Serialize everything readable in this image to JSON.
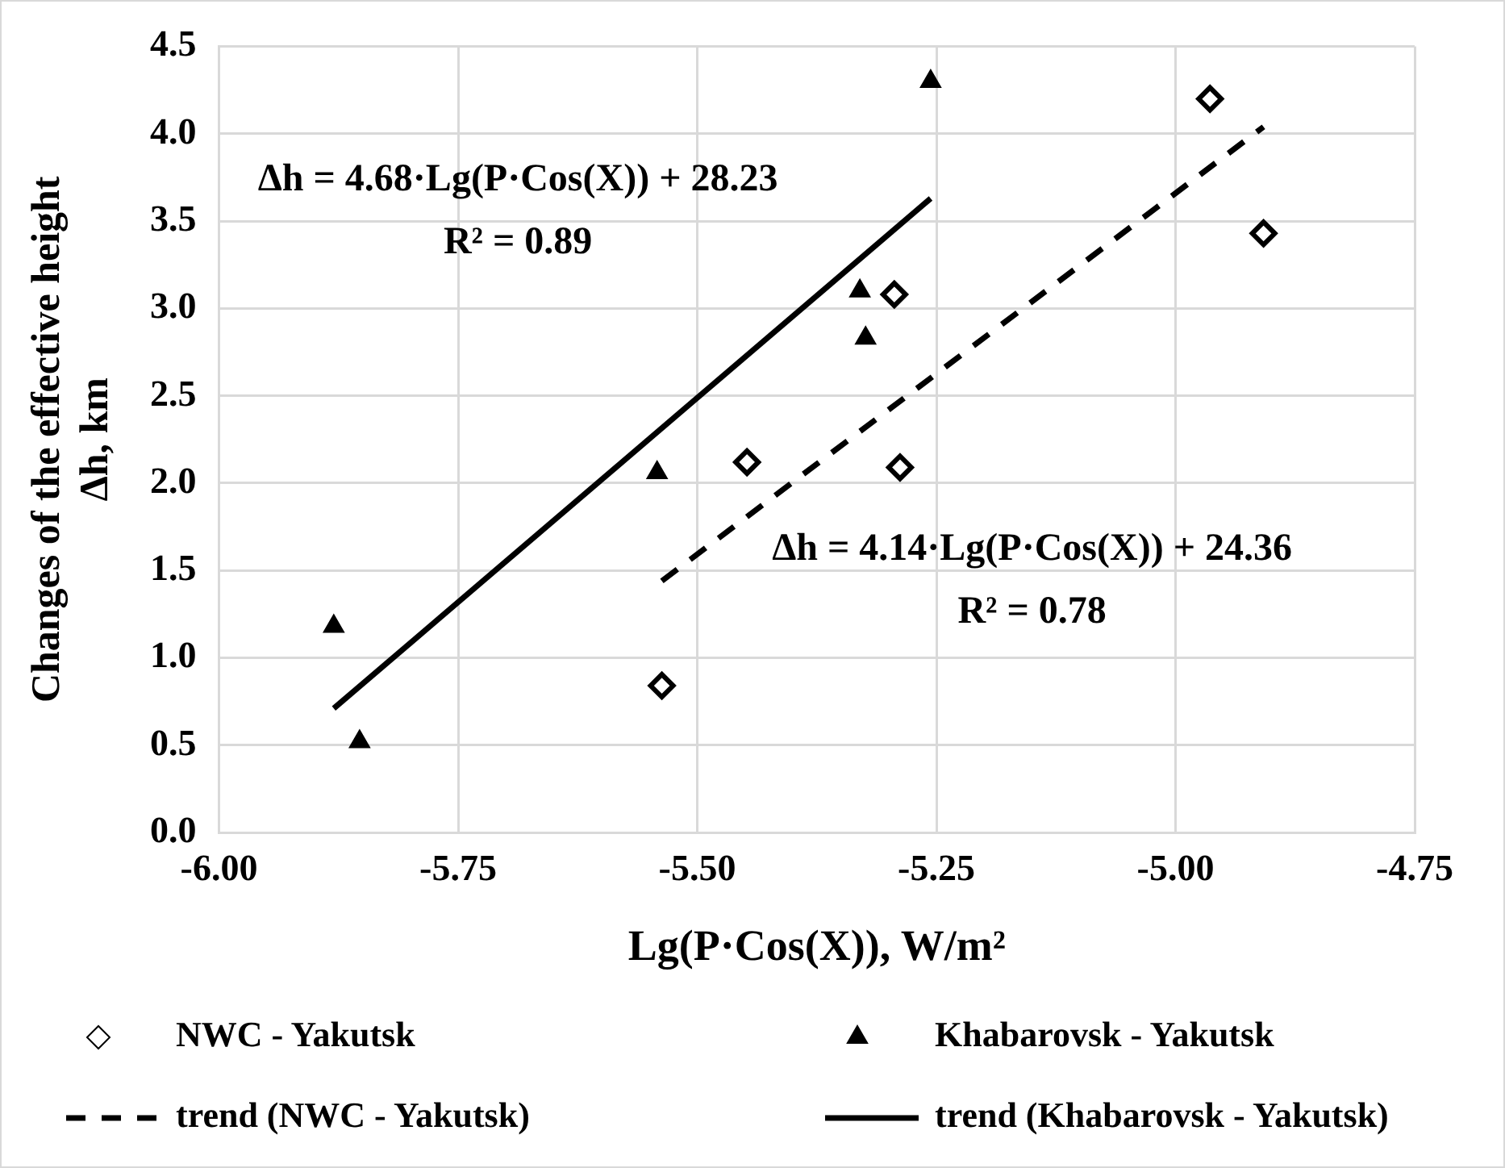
{
  "chart_data": {
    "type": "scatter",
    "xlabel": "Lg(P·Cos(X)), W/m²",
    "ylabel": "Changes of the effective height Δh, km",
    "xlim": [
      -6,
      -4.75
    ],
    "xticks": [
      {
        "value": -6,
        "label": "-6.00"
      },
      {
        "value": -5.75,
        "label": "-5.75"
      },
      {
        "value": -5.5,
        "label": "-5.50"
      },
      {
        "value": -5.25,
        "label": "-5.25"
      },
      {
        "value": -5,
        "label": "-5.00"
      },
      {
        "value": -4.75,
        "label": "-4.75"
      }
    ],
    "ylim": [
      0,
      4.5
    ],
    "yticks": [
      {
        "value": 0,
        "label": "0.0"
      },
      {
        "value": 0.5,
        "label": "0.5"
      },
      {
        "value": 1,
        "label": "1.0"
      },
      {
        "value": 1.5,
        "label": "1.5"
      },
      {
        "value": 2,
        "label": "2.0"
      },
      {
        "value": 2.5,
        "label": "2.5"
      },
      {
        "value": 3,
        "label": "3.0"
      },
      {
        "value": 3.5,
        "label": "3.5"
      },
      {
        "value": 4,
        "label": "4.0"
      },
      {
        "value": 4.5,
        "label": "4.5"
      }
    ],
    "grid": true,
    "legend": "bottom",
    "series": [
      {
        "name": "NWC - Yakutsk",
        "type": "scatter",
        "marker": "diamond",
        "color": "#000000",
        "x": [
          -5.537,
          -5.448,
          -5.288,
          -5.294,
          -4.964,
          -4.908
        ],
        "values": [
          0.84,
          2.12,
          2.09,
          3.08,
          4.2,
          3.43
        ]
      },
      {
        "name": "Khabarovsk - Yakutsk",
        "type": "scatter",
        "marker": "triangle",
        "color": "#000000",
        "x": [
          -5.88,
          -5.853,
          -5.542,
          -5.33,
          -5.324,
          -5.256
        ],
        "values": [
          1.18,
          0.52,
          2.06,
          3.1,
          2.83,
          4.3
        ]
      },
      {
        "name": "trend (NWC - Yakutsk)",
        "type": "line",
        "marker": "none",
        "line_style": "dashed",
        "color": "#000000",
        "x": [
          -5.537,
          -4.908
        ],
        "values": [
          1.44,
          4.04
        ]
      },
      {
        "name": "trend (Khabarovsk - Yakutsk)",
        "type": "line",
        "marker": "none",
        "line_style": "solid",
        "color": "#000000",
        "x": [
          -5.88,
          -5.256
        ],
        "values": [
          0.71,
          3.63
        ]
      }
    ],
    "annotations": [
      "Δh = 4.68·Lg(P·Cos(X)) + 28.23",
      "R² = 0.89",
      "Δh = 4.14·Lg(P·Cos(X)) + 24.36",
      "R² = 0.78"
    ]
  }
}
